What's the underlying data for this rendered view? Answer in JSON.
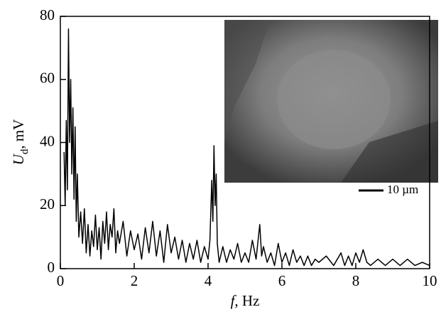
{
  "chart_data": {
    "type": "line",
    "xlabel": "f",
    "xlabel_unit": ", Hz",
    "ylabel": "U",
    "ylabel_sub": "d",
    "ylabel_unit": ", mV",
    "scale_bar_label": "10 µm",
    "color": "#000000",
    "x": [
      0.1,
      0.13,
      0.16,
      0.19,
      0.22,
      0.25,
      0.28,
      0.31,
      0.34,
      0.37,
      0.4,
      0.43,
      0.46,
      0.5,
      0.55,
      0.6,
      0.65,
      0.7,
      0.75,
      0.8,
      0.85,
      0.9,
      0.95,
      1.0,
      1.05,
      1.1,
      1.15,
      1.2,
      1.25,
      1.3,
      1.35,
      1.4,
      1.45,
      1.5,
      1.55,
      1.6,
      1.7,
      1.8,
      1.9,
      2.0,
      2.1,
      2.2,
      2.3,
      2.4,
      2.5,
      2.6,
      2.7,
      2.8,
      2.9,
      3.0,
      3.1,
      3.2,
      3.3,
      3.4,
      3.5,
      3.6,
      3.7,
      3.8,
      3.9,
      4.0,
      4.05,
      4.1,
      4.13,
      4.16,
      4.19,
      4.22,
      4.25,
      4.3,
      4.4,
      4.5,
      4.6,
      4.7,
      4.8,
      4.9,
      5.0,
      5.1,
      5.2,
      5.3,
      5.4,
      5.45,
      5.5,
      5.6,
      5.7,
      5.8,
      5.9,
      6.0,
      6.1,
      6.2,
      6.3,
      6.4,
      6.5,
      6.6,
      6.7,
      6.8,
      6.9,
      7.0,
      7.2,
      7.4,
      7.6,
      7.7,
      7.8,
      7.9,
      8.0,
      8.1,
      8.2,
      8.3,
      8.4,
      8.6,
      8.8,
      9.0,
      9.2,
      9.4,
      9.6,
      9.8,
      10.0
    ],
    "values": [
      37,
      20,
      47,
      25,
      76,
      40,
      60,
      30,
      51,
      22,
      45,
      15,
      30,
      10,
      18,
      8,
      19,
      5,
      14,
      4,
      12,
      7,
      17,
      6,
      13,
      3,
      15,
      8,
      18,
      6,
      14,
      10,
      19,
      5,
      12,
      8,
      15,
      4,
      12,
      6,
      11,
      3,
      13,
      5,
      15,
      4,
      12,
      2,
      14,
      5,
      10,
      3,
      9,
      2,
      8,
      3,
      9,
      2,
      7,
      3,
      9,
      28,
      15,
      39,
      20,
      30,
      8,
      2,
      7,
      2,
      6,
      3,
      8,
      2,
      5,
      2,
      9,
      3,
      14,
      4,
      7,
      2,
      5,
      1,
      8,
      2,
      5,
      1,
      6,
      2,
      4,
      1,
      4,
      1,
      3,
      2,
      4,
      1,
      5,
      1,
      4,
      1,
      5,
      2,
      6,
      2,
      1,
      3,
      1,
      3,
      1,
      3,
      1,
      2,
      1
    ],
    "xlim": [
      0,
      10
    ],
    "xticks": [
      0,
      2,
      4,
      6,
      8,
      10
    ],
    "ylim": [
      0,
      80
    ],
    "yticks": [
      0,
      20,
      40,
      60,
      80
    ]
  }
}
